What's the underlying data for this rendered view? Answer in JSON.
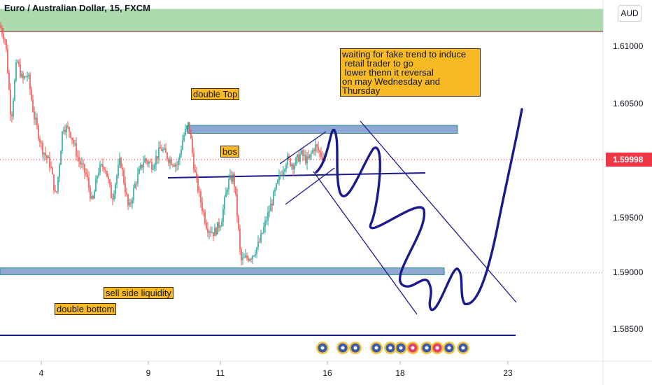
{
  "header": {
    "title": "Euro / Australian Dollar, 15, FXCM",
    "currency_button": "AUD"
  },
  "annotations": {
    "double_top": "double Top",
    "bos": "bos",
    "sell_side": "sell side liquidity",
    "double_bottom": "double bottom",
    "waiting": "waiting for fake trend to induce\n retail trader to go\n lower thenn it reversal\non may Wednesday and\nThursday"
  },
  "colors": {
    "up_candle": "#26a69a",
    "down_candle": "#ef5350",
    "zone_green": "#a5d6a7",
    "zone_blue": "#8fa9d6",
    "drawing": "#1a1a8c",
    "price_label": "#f23645"
  },
  "chart_data": {
    "type": "candlestick",
    "title": "Euro / Australian Dollar, 15, FXCM",
    "y_axis_ticks": [
      "1.61000",
      "1.60500",
      "1.60000",
      "1.59500",
      "1.59000",
      "1.58500"
    ],
    "x_axis_ticks": [
      "4",
      "9",
      "11",
      "16",
      "18",
      "23"
    ],
    "current_price": "1.59998",
    "ylim": [
      1.5805,
      1.613
    ],
    "grid": false,
    "zones": [
      {
        "label": "supply zone",
        "y": [
          1.6113,
          1.6133
        ]
      },
      {
        "label": "double Top zone",
        "y": [
          1.6023,
          1.603
        ]
      },
      {
        "label": "double bottom zone",
        "y": [
          1.5898,
          1.5904
        ]
      }
    ],
    "levels": [
      1.5986,
      1.5846
    ]
  }
}
